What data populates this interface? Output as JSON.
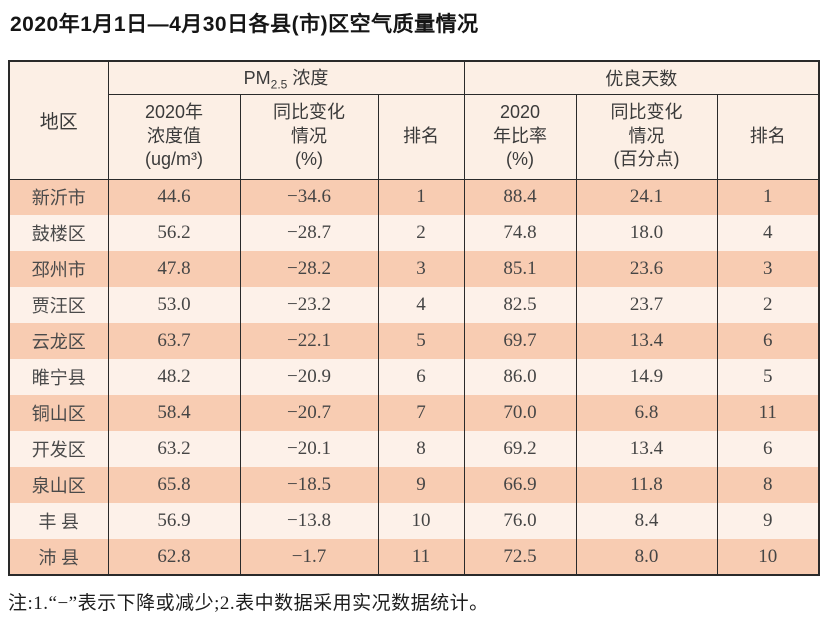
{
  "page": {
    "title": "2020年1月1日—4月30日各县(市)区空气质量情况",
    "footnote": "注:1.“−”表示下降或减少;2.表中数据采用实况数据统计。"
  },
  "table": {
    "region_header": "地区",
    "group_pm": {
      "prefix": "PM",
      "sub": "2.5",
      "suffix": " 浓度"
    },
    "group_good_days": "优良天数",
    "subheaders": {
      "pm_value": "2020年\n浓度值\n(ug/m³)",
      "pm_change": "同比变化\n情况\n(%)",
      "pm_rank": "排名",
      "good_ratio": "2020\n年比率\n(%)",
      "good_change": "同比变化\n情况\n(百分点)",
      "good_rank": "排名"
    },
    "columns_order": [
      "region",
      "pm_value",
      "pm_change",
      "pm_rank",
      "good_ratio",
      "good_change",
      "good_rank"
    ],
    "rows": [
      {
        "region": "新沂市",
        "pm_value": "44.6",
        "pm_change": "−34.6",
        "pm_rank": "1",
        "good_ratio": "88.4",
        "good_change": "24.1",
        "good_rank": "1"
      },
      {
        "region": "鼓楼区",
        "pm_value": "56.2",
        "pm_change": "−28.7",
        "pm_rank": "2",
        "good_ratio": "74.8",
        "good_change": "18.0",
        "good_rank": "4"
      },
      {
        "region": "邳州市",
        "pm_value": "47.8",
        "pm_change": "−28.2",
        "pm_rank": "3",
        "good_ratio": "85.1",
        "good_change": "23.6",
        "good_rank": "3"
      },
      {
        "region": "贾汪区",
        "pm_value": "53.0",
        "pm_change": "−23.2",
        "pm_rank": "4",
        "good_ratio": "82.5",
        "good_change": "23.7",
        "good_rank": "2"
      },
      {
        "region": "云龙区",
        "pm_value": "63.7",
        "pm_change": "−22.1",
        "pm_rank": "5",
        "good_ratio": "69.7",
        "good_change": "13.4",
        "good_rank": "6"
      },
      {
        "region": "睢宁县",
        "pm_value": "48.2",
        "pm_change": "−20.9",
        "pm_rank": "6",
        "good_ratio": "86.0",
        "good_change": "14.9",
        "good_rank": "5"
      },
      {
        "region": "铜山区",
        "pm_value": "58.4",
        "pm_change": "−20.7",
        "pm_rank": "7",
        "good_ratio": "70.0",
        "good_change": "6.8",
        "good_rank": "11"
      },
      {
        "region": "开发区",
        "pm_value": "63.2",
        "pm_change": "−20.1",
        "pm_rank": "8",
        "good_ratio": "69.2",
        "good_change": "13.4",
        "good_rank": "6"
      },
      {
        "region": "泉山区",
        "pm_value": "65.8",
        "pm_change": "−18.5",
        "pm_rank": "9",
        "good_ratio": "66.9",
        "good_change": "11.8",
        "good_rank": "8"
      },
      {
        "region": "丰 县",
        "pm_value": "56.9",
        "pm_change": "−13.8",
        "pm_rank": "10",
        "good_ratio": "76.0",
        "good_change": "8.4",
        "good_rank": "9"
      },
      {
        "region": "沛 县",
        "pm_value": "62.8",
        "pm_change": "−1.7",
        "pm_rank": "11",
        "good_ratio": "72.5",
        "good_change": "8.0",
        "good_rank": "10"
      }
    ],
    "colors": {
      "row_dark": "#f8ccb2",
      "row_light": "#fdf1e9",
      "header_bg": "#fcefe5",
      "border": "#2a2a2a"
    }
  }
}
